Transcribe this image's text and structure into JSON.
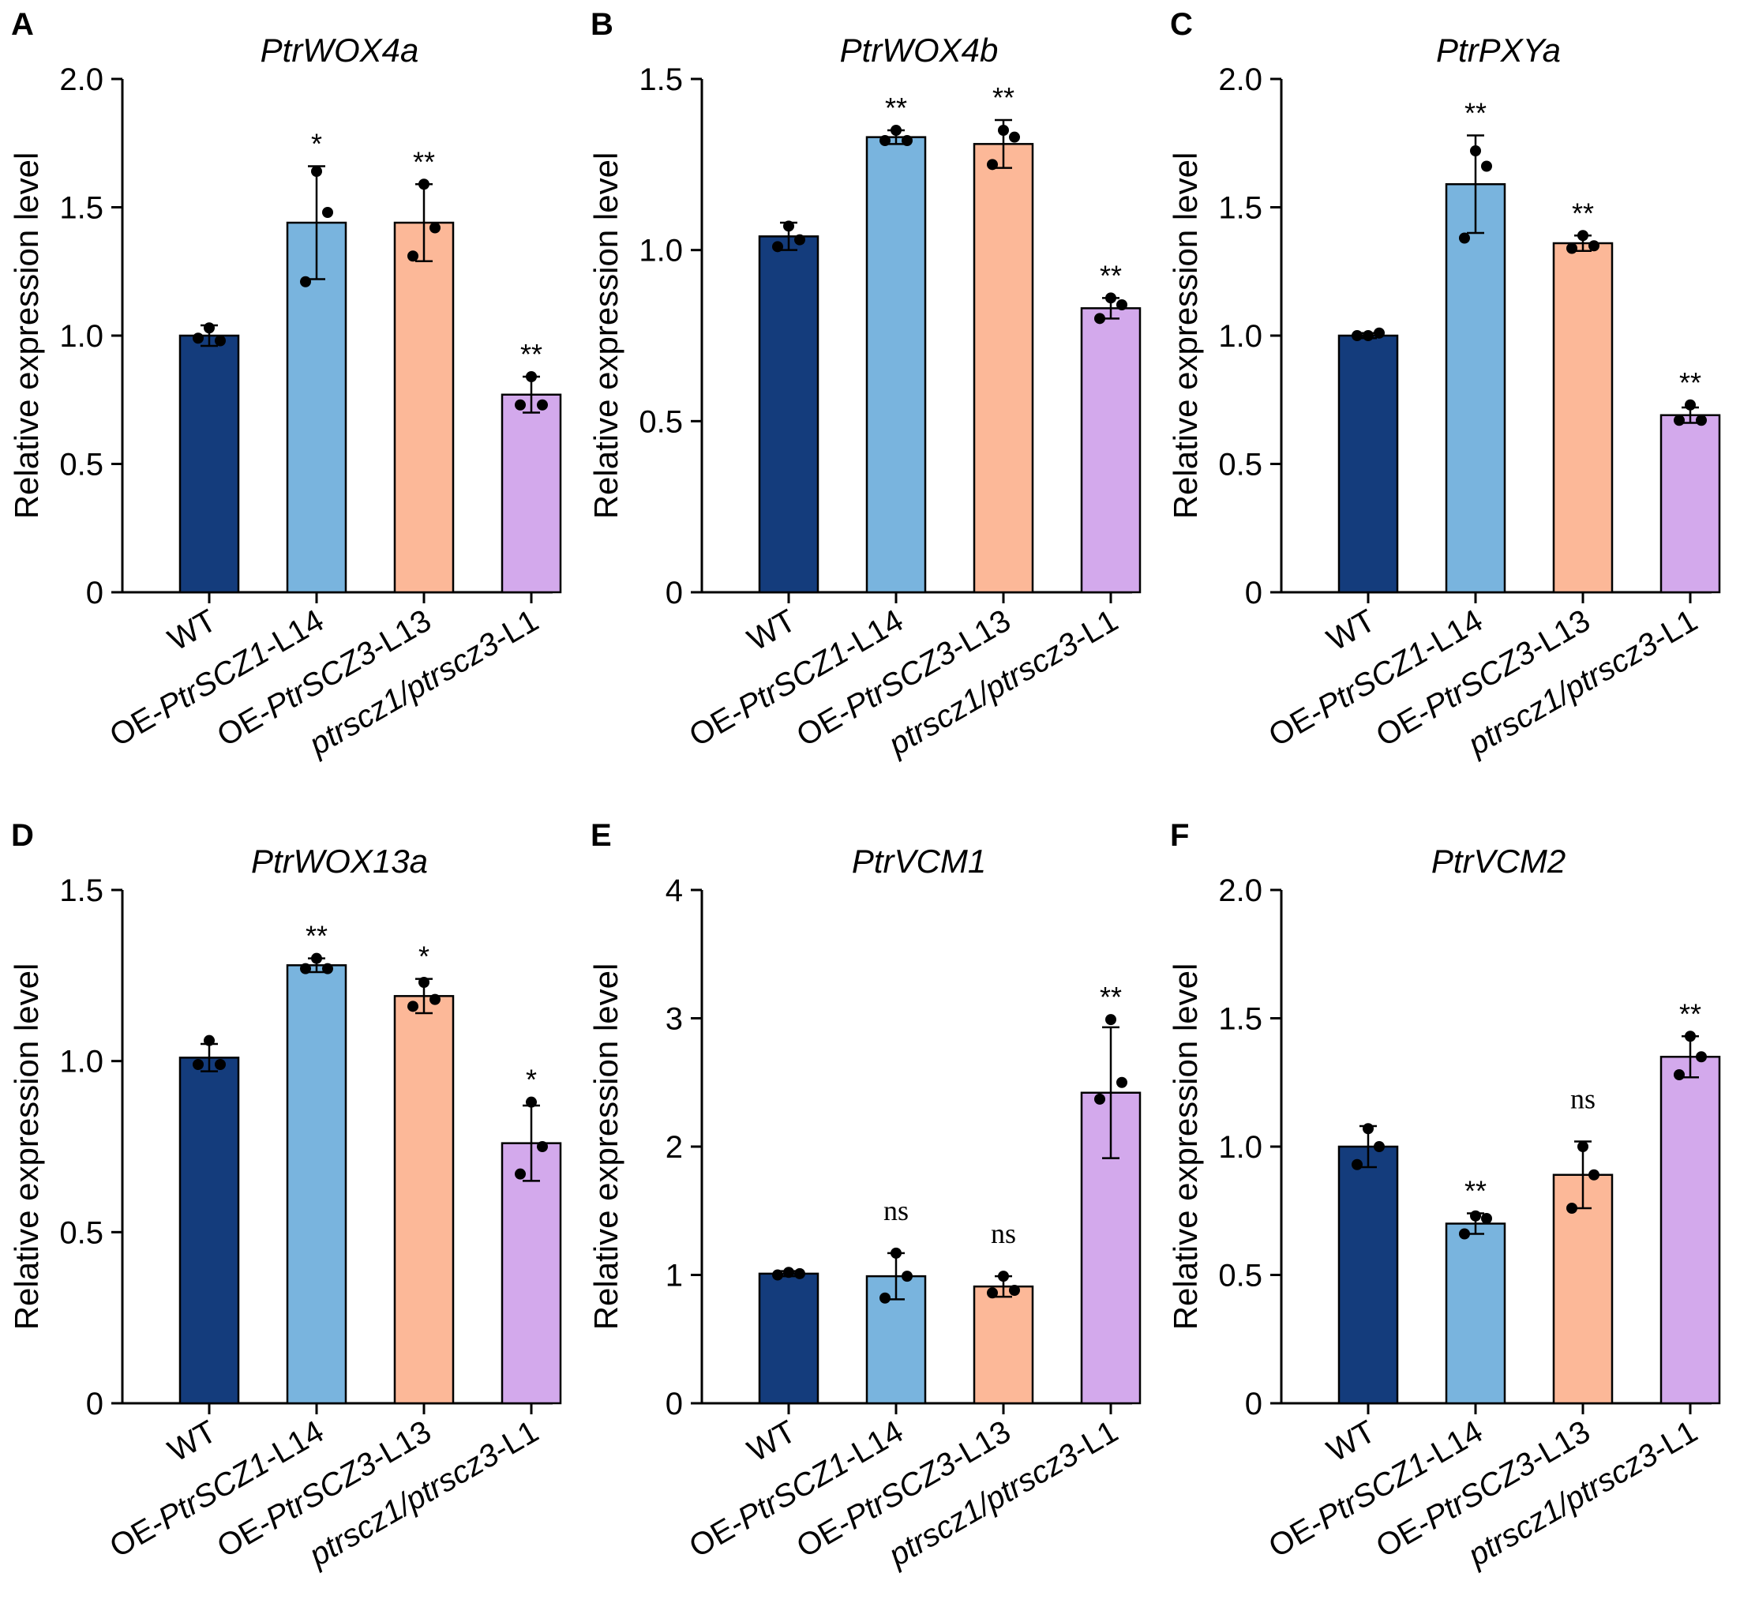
{
  "chart_data": [
    {
      "panel": "A",
      "type": "bar",
      "title": "PtrWOX4a",
      "ylabel": "Relative expression level",
      "ylim": [
        0,
        2.0
      ],
      "yticks": [
        "0",
        "0.5",
        "1.0",
        "1.5",
        "2.0"
      ],
      "ytick_values": [
        0,
        0.5,
        1.0,
        1.5,
        2.0
      ],
      "categories": [
        {
          "prefix": "",
          "italic": "",
          "suffix": "WT"
        },
        {
          "prefix": "OE-",
          "italic": "PtrSCZ1",
          "suffix": "-L14"
        },
        {
          "prefix": "OE-",
          "italic": "PtrSCZ3",
          "suffix": "-L13"
        },
        {
          "prefix": "",
          "italic": "ptrscz1/ptrscz3",
          "suffix": "-L1"
        }
      ],
      "values": [
        1.0,
        1.44,
        1.44,
        0.77
      ],
      "errors": [
        0.04,
        0.22,
        0.15,
        0.07
      ],
      "points": [
        [
          1.03,
          0.98,
          0.99
        ],
        [
          1.64,
          1.48,
          1.21
        ],
        [
          1.59,
          1.42,
          1.31
        ],
        [
          0.84,
          0.73,
          0.73
        ]
      ],
      "significance": [
        "",
        "*",
        "**",
        "**"
      ]
    },
    {
      "panel": "B",
      "type": "bar",
      "title": "PtrWOX4b",
      "ylabel": "Relative expression level",
      "ylim": [
        0,
        1.5
      ],
      "yticks": [
        "0",
        "0.5",
        "1.0",
        "1.5"
      ],
      "ytick_values": [
        0,
        0.5,
        1.0,
        1.5
      ],
      "categories": [
        {
          "prefix": "",
          "italic": "",
          "suffix": "WT"
        },
        {
          "prefix": "OE-",
          "italic": "PtrSCZ1",
          "suffix": "-L14"
        },
        {
          "prefix": "OE-",
          "italic": "PtrSCZ3",
          "suffix": "-L13"
        },
        {
          "prefix": "",
          "italic": "ptrscz1/ptrscz3",
          "suffix": "-L1"
        }
      ],
      "values": [
        1.04,
        1.33,
        1.31,
        0.83
      ],
      "errors": [
        0.04,
        0.02,
        0.07,
        0.03
      ],
      "points": [
        [
          1.07,
          1.03,
          1.01
        ],
        [
          1.35,
          1.32,
          1.32
        ],
        [
          1.35,
          1.33,
          1.25
        ],
        [
          0.86,
          0.84,
          0.8
        ]
      ],
      "significance": [
        "",
        "**",
        "**",
        "**"
      ]
    },
    {
      "panel": "C",
      "type": "bar",
      "title": "PtrPXYa",
      "ylabel": "Relative expression level",
      "ylim": [
        0,
        2.0
      ],
      "yticks": [
        "0",
        "0.5",
        "1.0",
        "1.5",
        "2.0"
      ],
      "ytick_values": [
        0,
        0.5,
        1.0,
        1.5,
        2.0
      ],
      "categories": [
        {
          "prefix": "",
          "italic": "",
          "suffix": "WT"
        },
        {
          "prefix": "OE-",
          "italic": "PtrSCZ1",
          "suffix": "-L14"
        },
        {
          "prefix": "OE-",
          "italic": "PtrSCZ3",
          "suffix": "-L13"
        },
        {
          "prefix": "",
          "italic": "ptrscz1/ptrscz3",
          "suffix": "-L1"
        }
      ],
      "values": [
        1.0,
        1.59,
        1.36,
        0.69
      ],
      "errors": [
        0.01,
        0.19,
        0.03,
        0.03
      ],
      "points": [
        [
          1.0,
          1.01,
          1.0
        ],
        [
          1.72,
          1.66,
          1.38
        ],
        [
          1.39,
          1.35,
          1.34
        ],
        [
          0.73,
          0.67,
          0.67
        ]
      ],
      "significance": [
        "",
        "**",
        "**",
        "**"
      ]
    },
    {
      "panel": "D",
      "type": "bar",
      "title": "PtrWOX13a",
      "ylabel": "Relative expression level",
      "ylim": [
        0,
        1.5
      ],
      "yticks": [
        "0",
        "0.5",
        "1.0",
        "1.5"
      ],
      "ytick_values": [
        0,
        0.5,
        1.0,
        1.5
      ],
      "categories": [
        {
          "prefix": "",
          "italic": "",
          "suffix": "WT"
        },
        {
          "prefix": "OE-",
          "italic": "PtrSCZ1",
          "suffix": "-L14"
        },
        {
          "prefix": "OE-",
          "italic": "PtrSCZ3",
          "suffix": "-L13"
        },
        {
          "prefix": "",
          "italic": "ptrscz1/ptrscz3",
          "suffix": "-L1"
        }
      ],
      "values": [
        1.01,
        1.28,
        1.19,
        0.76
      ],
      "errors": [
        0.04,
        0.02,
        0.05,
        0.11
      ],
      "points": [
        [
          1.06,
          0.99,
          0.99
        ],
        [
          1.3,
          1.27,
          1.27
        ],
        [
          1.23,
          1.18,
          1.16
        ],
        [
          0.88,
          0.75,
          0.67
        ]
      ],
      "significance": [
        "",
        "**",
        "*",
        "*"
      ]
    },
    {
      "panel": "E",
      "type": "bar",
      "title": "PtrVCM1",
      "ylabel": "Relative expression level",
      "ylim": [
        0,
        4
      ],
      "yticks": [
        "0",
        "1",
        "2",
        "3",
        "4"
      ],
      "ytick_values": [
        0,
        1,
        2,
        3,
        4
      ],
      "categories": [
        {
          "prefix": "",
          "italic": "",
          "suffix": "WT"
        },
        {
          "prefix": "OE-",
          "italic": "PtrSCZ1",
          "suffix": "-L14"
        },
        {
          "prefix": "OE-",
          "italic": "PtrSCZ3",
          "suffix": "-L13"
        },
        {
          "prefix": "",
          "italic": "ptrscz1/ptrscz3",
          "suffix": "-L1"
        }
      ],
      "values": [
        1.01,
        0.99,
        0.91,
        2.42
      ],
      "errors": [
        0.02,
        0.18,
        0.08,
        0.51
      ],
      "points": [
        [
          1.02,
          1.01,
          1.0
        ],
        [
          1.17,
          0.99,
          0.82
        ],
        [
          0.99,
          0.88,
          0.86
        ],
        [
          2.99,
          2.5,
          2.37
        ]
      ],
      "significance": [
        "",
        "ns",
        "ns",
        "**"
      ]
    },
    {
      "panel": "F",
      "type": "bar",
      "title": "PtrVCM2",
      "ylabel": "Relative expression level",
      "ylim": [
        0,
        2.0
      ],
      "yticks": [
        "0",
        "0.5",
        "1.0",
        "1.5",
        "2.0"
      ],
      "ytick_values": [
        0,
        0.5,
        1.0,
        1.5,
        2.0
      ],
      "categories": [
        {
          "prefix": "",
          "italic": "",
          "suffix": "WT"
        },
        {
          "prefix": "OE-",
          "italic": "PtrSCZ1",
          "suffix": "-L14"
        },
        {
          "prefix": "OE-",
          "italic": "PtrSCZ3",
          "suffix": "-L13"
        },
        {
          "prefix": "",
          "italic": "ptrscz1/ptrscz3",
          "suffix": "-L1"
        }
      ],
      "values": [
        1.0,
        0.7,
        0.89,
        1.35
      ],
      "errors": [
        0.08,
        0.04,
        0.13,
        0.08
      ],
      "points": [
        [
          1.07,
          1.0,
          0.93
        ],
        [
          0.73,
          0.72,
          0.66
        ],
        [
          1.0,
          0.89,
          0.76
        ],
        [
          1.43,
          1.35,
          1.28
        ]
      ],
      "significance": [
        "",
        "**",
        "ns",
        "**"
      ]
    }
  ],
  "colors": {
    "WT": "#143c7c",
    "OE-PtrSCZ1-L14": "#79b4de",
    "OE-PtrSCZ3-L13": "#fcb898",
    "ptrscz1/ptrscz3-L1": "#d3a9ec",
    "ink": "#000000"
  }
}
